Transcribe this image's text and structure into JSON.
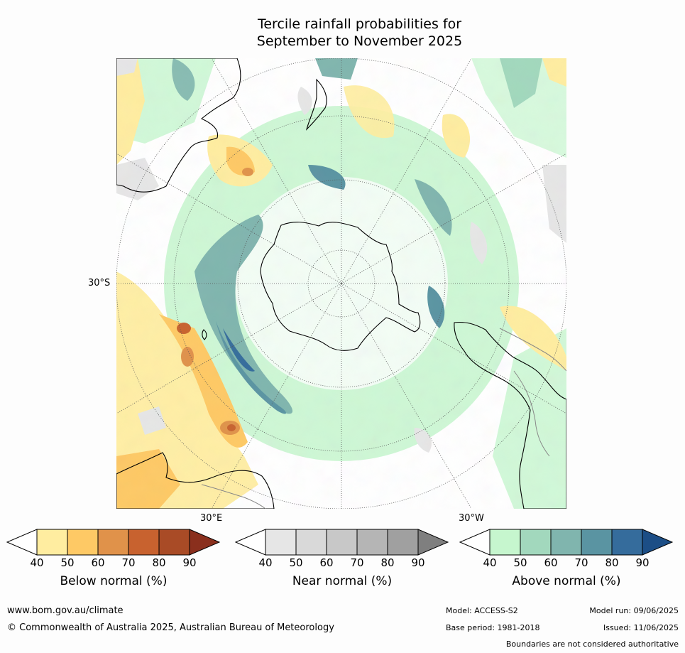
{
  "title_line1": "Tercile rainfall probabilities for",
  "title_line2": "September to November 2025",
  "map": {
    "projection": "south-polar stereographic",
    "labels": {
      "lat_30s": "30°S",
      "lon_30e": "30°E",
      "lon_30w": "30°W"
    }
  },
  "legend": {
    "tick_values": [
      "40",
      "50",
      "60",
      "70",
      "80",
      "90"
    ],
    "below": {
      "title": "Below normal (%)",
      "colors": [
        "#ffffff",
        "#ffeda0",
        "#fec965",
        "#e0924a",
        "#c8622f",
        "#a94b26",
        "#8a2f1d"
      ]
    },
    "near": {
      "title": "Near normal (%)",
      "colors": [
        "#ffffff",
        "#e6e6e6",
        "#d9d9d9",
        "#c8c8c8",
        "#b5b5b5",
        "#a0a0a0",
        "#7f7f7f"
      ]
    },
    "above": {
      "title": "Above normal (%)",
      "colors": [
        "#ffffff",
        "#c6f6ce",
        "#a2d8bd",
        "#80b5ae",
        "#5a94a2",
        "#356c9c",
        "#1c4e86"
      ]
    }
  },
  "footer": {
    "website": "www.bom.gov.au/climate",
    "copyright": "© Commonwealth of Australia 2025, Australian Bureau of Meteorology",
    "model": "Model: ACCESS-S2",
    "base_period": "Base period: 1981-2018",
    "model_run": "Model run: 09/06/2025",
    "issued": "Issued: 11/06/2025",
    "disclaimer": "Boundaries are not considered authoritative"
  }
}
